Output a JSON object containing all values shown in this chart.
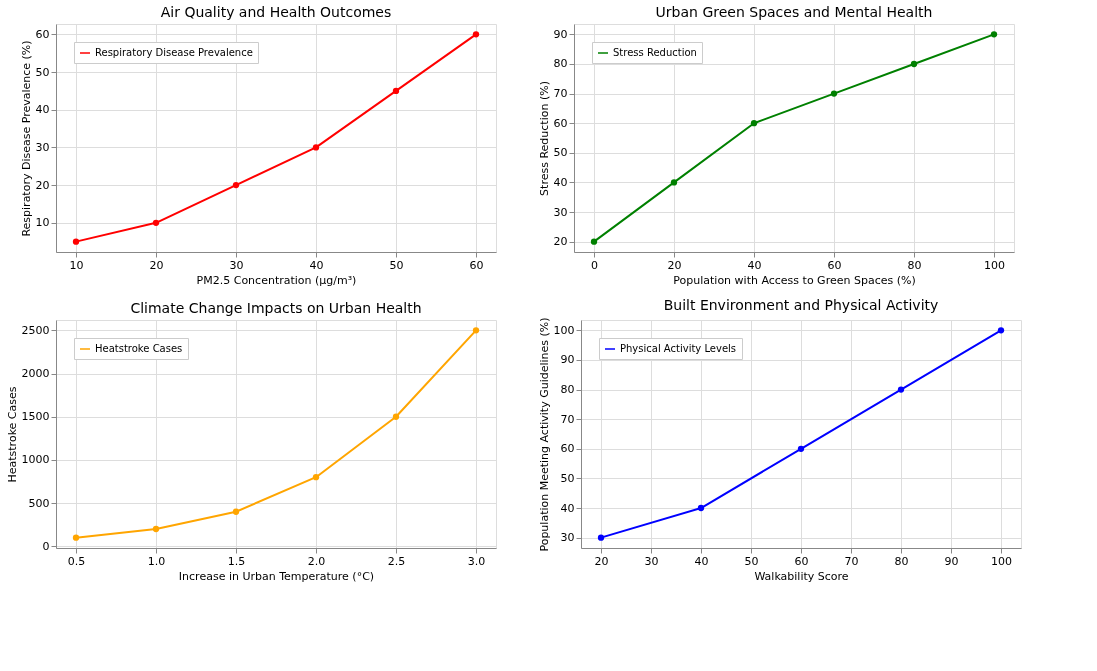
{
  "chart_data": [
    {
      "type": "line",
      "title": "Air Quality and Health Outcomes",
      "xlabel": "PM2.5 Concentration (µg/m³)",
      "ylabel": "Respiratory Disease Prevalence (%)",
      "x": [
        10,
        20,
        30,
        40,
        50,
        60
      ],
      "series": [
        {
          "name": "Respiratory Disease Prevalence",
          "color": "#ff0000",
          "values": [
            5,
            10,
            20,
            30,
            45,
            60
          ]
        }
      ],
      "xlim": [
        7.5,
        62.5
      ],
      "ylim": [
        2.25,
        62.75
      ],
      "xticks": [
        10,
        20,
        30,
        40,
        50,
        60
      ],
      "yticks": [
        10,
        20,
        30,
        40,
        50,
        60
      ],
      "grid": true,
      "legend": "top left",
      "marker": "circle",
      "line_style": "solid"
    },
    {
      "type": "line",
      "title": "Urban Green Spaces and Mental Health",
      "xlabel": "Population with Access to Green Spaces (%)",
      "ylabel": "Stress Reduction (%)",
      "x": [
        0,
        20,
        40,
        60,
        80,
        100
      ],
      "series": [
        {
          "name": "Stress Reduction",
          "color": "#008000",
          "values": [
            20,
            40,
            60,
            70,
            80,
            90
          ]
        }
      ],
      "xlim": [
        -5,
        105
      ],
      "ylim": [
        16.5,
        93.5
      ],
      "xticks": [
        0,
        20,
        40,
        60,
        80,
        100
      ],
      "yticks": [
        20,
        30,
        40,
        50,
        60,
        70,
        80,
        90
      ],
      "grid": true,
      "legend": "top left",
      "marker": "circle",
      "line_style": "solid"
    },
    {
      "type": "line",
      "title": "Climate Change Impacts on Urban Health",
      "xlabel": "Increase in Urban Temperature (°C)",
      "ylabel": "Heatstroke Cases",
      "x": [
        0.5,
        1.0,
        1.5,
        2.0,
        2.5,
        3.0
      ],
      "series": [
        {
          "name": "Heatstroke Cases",
          "color": "#ffa500",
          "values": [
            100,
            200,
            400,
            800,
            1500,
            2500
          ]
        }
      ],
      "xlim": [
        0.375,
        3.125
      ],
      "ylim": [
        -20,
        2620
      ],
      "xticks": [
        0.5,
        {
          "value": 1,
          "label": "1.0"
        },
        1.5,
        {
          "value": 2,
          "label": "2.0"
        },
        2.5,
        {
          "value": 3,
          "label": "3.0"
        }
      ],
      "yticks": [
        0,
        500,
        1000,
        1500,
        2000,
        2500
      ],
      "grid": true,
      "legend": "top left",
      "marker": "circle",
      "line_style": "solid"
    },
    {
      "type": "line",
      "title": "Built Environment and Physical Activity",
      "xlabel": "Walkability Score",
      "ylabel": "Population Meeting Activity Guidelines (%)",
      "x": [
        20,
        40,
        60,
        80,
        100
      ],
      "series": [
        {
          "name": "Physical Activity Levels",
          "color": "#0000ff",
          "values": [
            30,
            40,
            60,
            80,
            100
          ]
        }
      ],
      "xlim": [
        16,
        104
      ],
      "ylim": [
        26.5,
        103.5
      ],
      "xticks": [
        20,
        30,
        40,
        50,
        60,
        70,
        80,
        90,
        100
      ],
      "yticks": [
        30,
        40,
        50,
        60,
        70,
        80,
        90,
        100
      ],
      "grid": true,
      "legend": "top left",
      "marker": "circle",
      "line_style": "solid"
    }
  ]
}
